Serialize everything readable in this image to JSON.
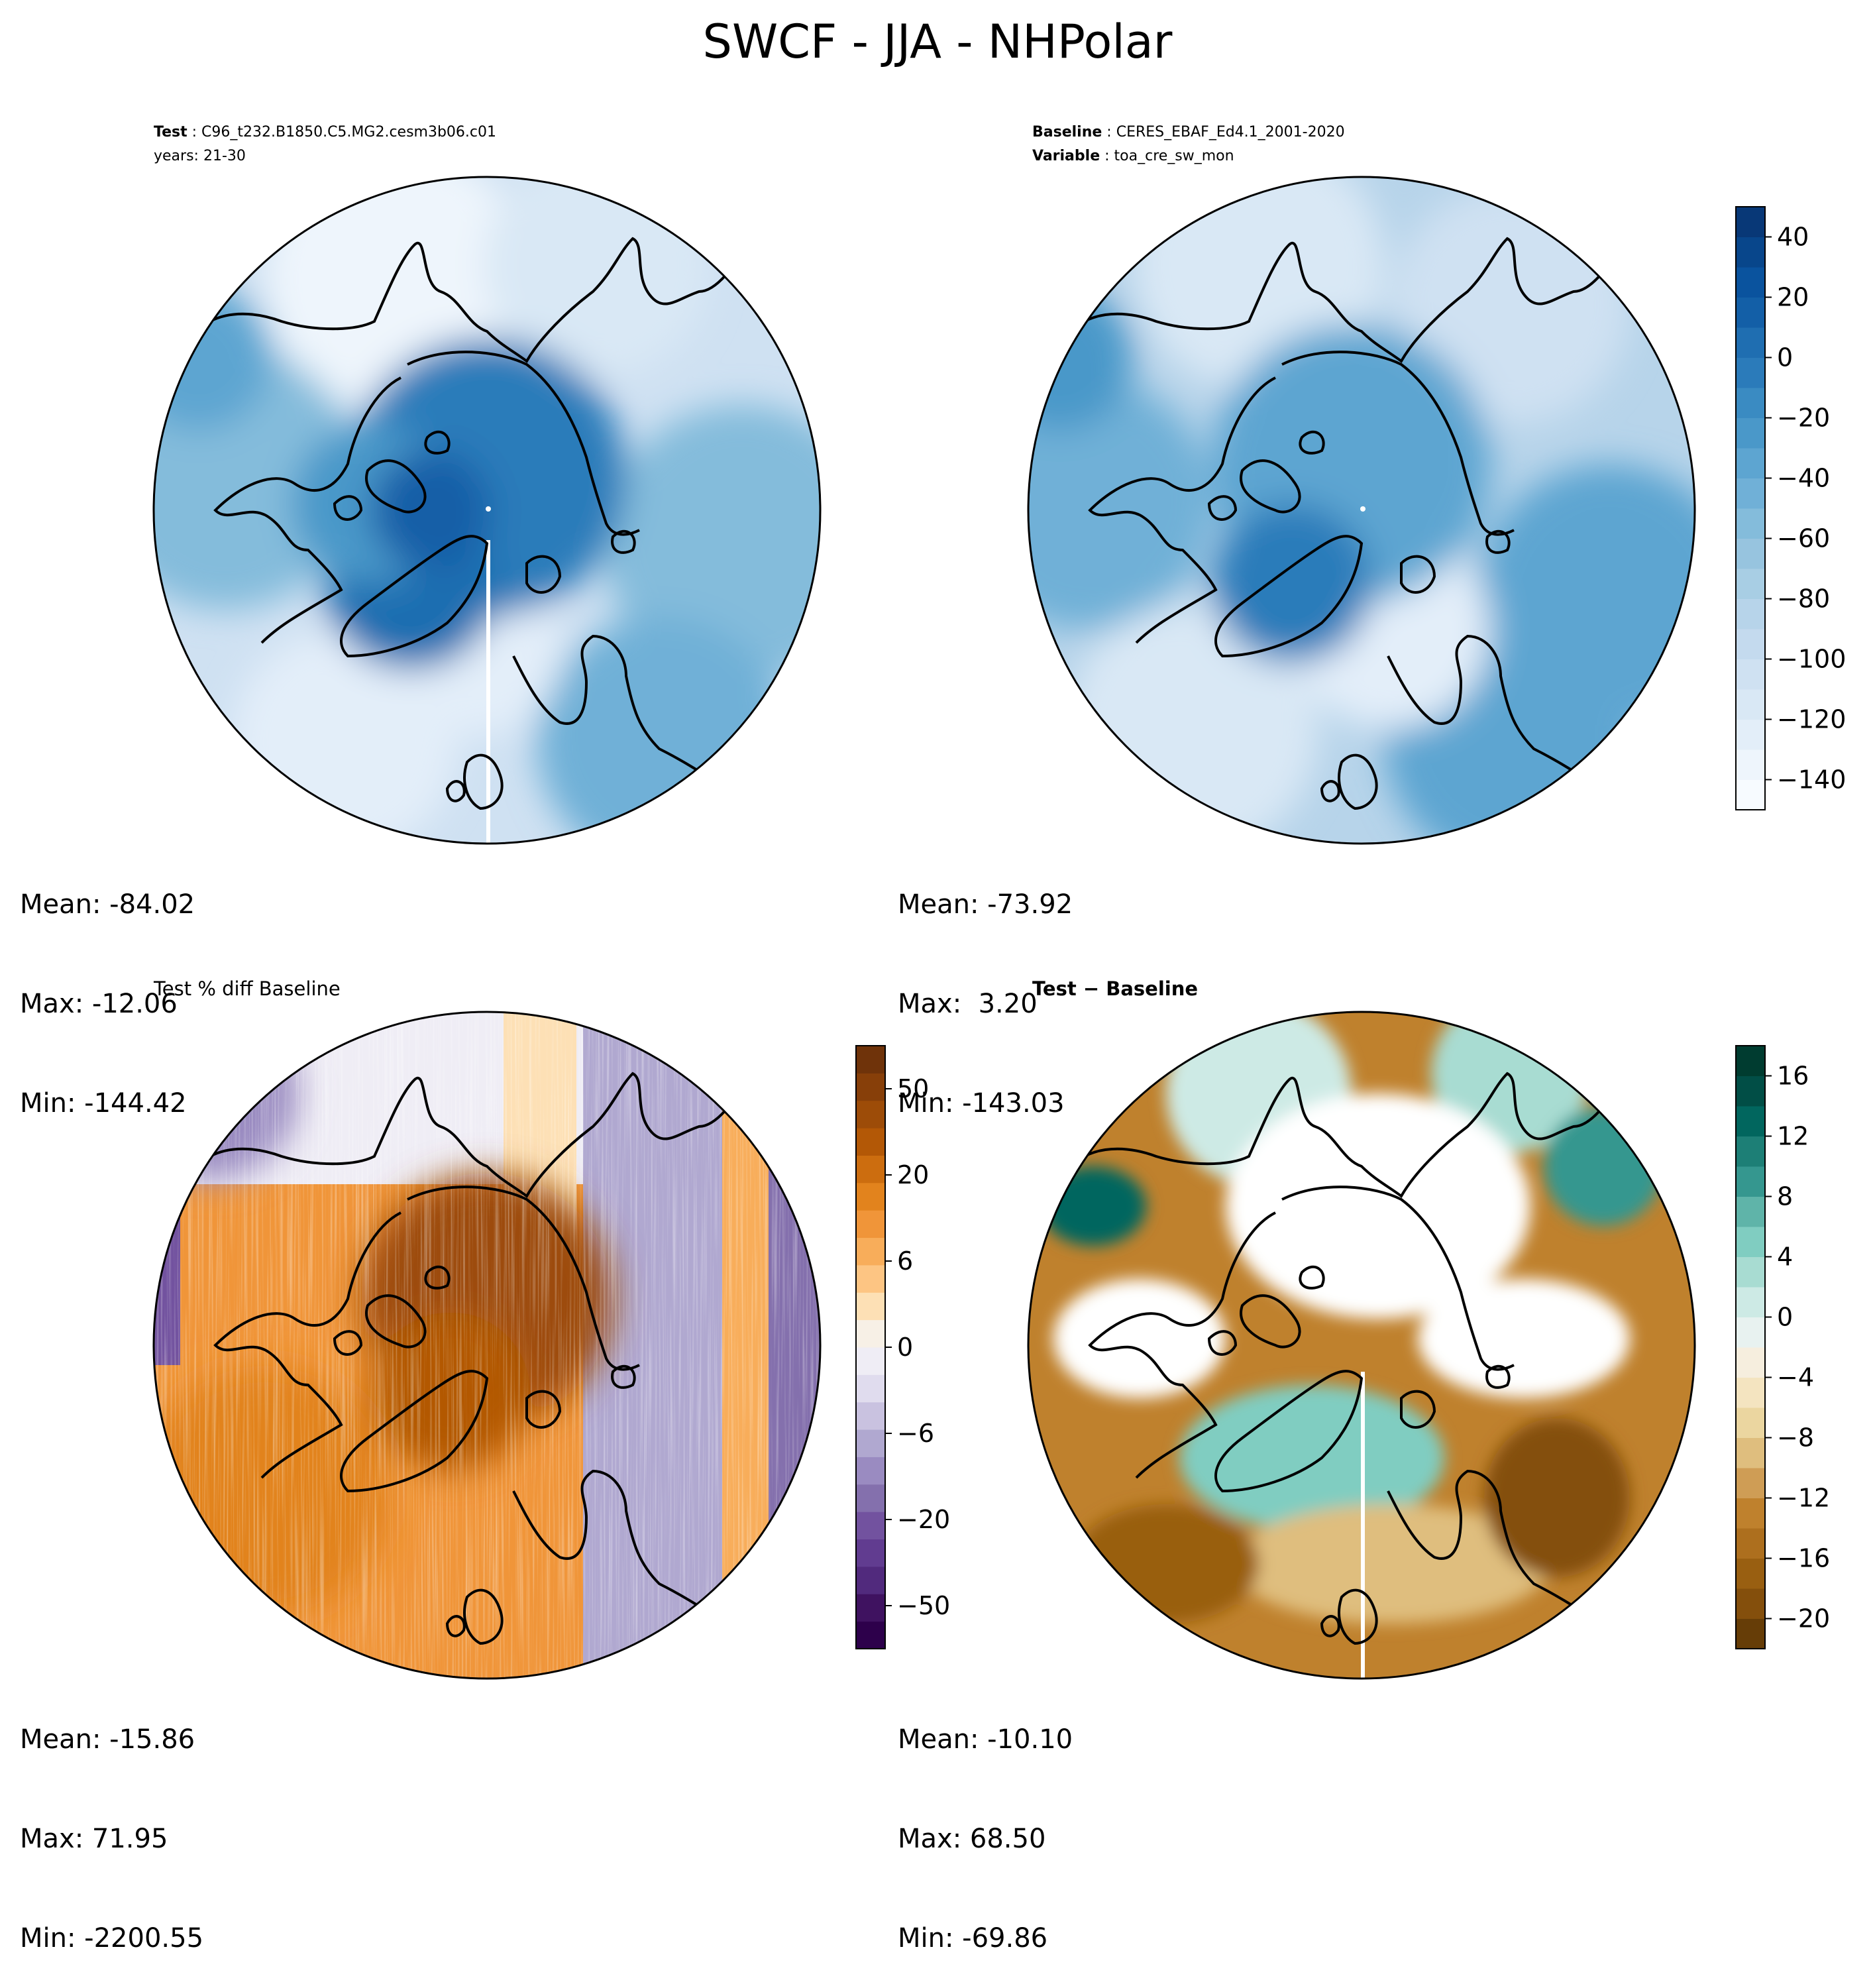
{
  "title": "SWCF - JJA - NHPolar",
  "test_header": {
    "label": "Test",
    "value": "C96_t232.B1850.C5.MG2.cesm3b06.c01",
    "years": "years: 21-30"
  },
  "baseline_header": {
    "label": "Baseline",
    "value": "CERES_EBAF_Ed4.1_2001-2020",
    "var_label": "Variable",
    "var_value": "toa_cre_sw_mon"
  },
  "pctdiff_title": "Test % diff Baseline",
  "diff_title": "Test − Baseline",
  "stats": {
    "test": {
      "mean": "Mean: -84.02",
      "max": "Max: -12.06",
      "min": "Min: -144.42"
    },
    "baseline": {
      "mean": "Mean: -73.92",
      "max": "Max:  3.20",
      "min": "Min: -143.03"
    },
    "pctdiff": {
      "mean": "Mean: -15.86",
      "max": "Max: 71.95",
      "min": "Min: -2200.55"
    },
    "diff": {
      "mean": "Mean: -10.10",
      "max": "Max: 68.50",
      "min": "Min: -69.86"
    }
  },
  "chart_data": [
    {
      "type": "heatmap",
      "projection": "north-polar-stereographic",
      "panel": "test",
      "colormap": "Blues",
      "levels": [
        -150,
        40
      ],
      "summary": {
        "mean": -84.02,
        "max": -12.06,
        "min": -144.42
      }
    },
    {
      "type": "heatmap",
      "projection": "north-polar-stereographic",
      "panel": "baseline",
      "colormap": "Blues",
      "levels": [
        -150,
        40
      ],
      "summary": {
        "mean": -73.92,
        "max": 3.2,
        "min": -143.03
      },
      "colorbar": {
        "ticks": [
          "40",
          "20",
          "0",
          "−20",
          "−40",
          "−60",
          "−80",
          "−100",
          "−120",
          "−140"
        ]
      }
    },
    {
      "type": "heatmap",
      "projection": "north-polar-stereographic",
      "panel": "pct-diff",
      "colormap": "PuOr",
      "levels": [
        -80,
        80
      ],
      "summary": {
        "mean": -15.86,
        "max": 71.95,
        "min": -2200.55
      },
      "colorbar": {
        "ticks": [
          "50",
          "20",
          "6",
          "0",
          "−6",
          "−20",
          "−50"
        ]
      }
    },
    {
      "type": "heatmap",
      "projection": "north-polar-stereographic",
      "panel": "diff",
      "colormap": "BrBG",
      "levels": [
        -20,
        18
      ],
      "summary": {
        "mean": -10.1,
        "max": 68.5,
        "min": -69.86
      },
      "colorbar": {
        "ticks": [
          "16",
          "12",
          "8",
          "4",
          "0",
          "−4",
          "−8",
          "−12",
          "−16",
          "−20"
        ]
      }
    }
  ],
  "colors": {
    "blues": [
      "#f7fbff",
      "#eef5fc",
      "#e3eef9",
      "#d9e8f5",
      "#cfe1f2",
      "#c4daee",
      "#b7d4ea",
      "#a8cee4",
      "#97c4df",
      "#84bcdb",
      "#70b0d7",
      "#5da5d1",
      "#4a98c9",
      "#3a8bc2",
      "#2b7bba",
      "#1f6eb1",
      "#135fa7",
      "#0a539e",
      "#08468b",
      "#083877"
    ],
    "puor": [
      "#2d004b",
      "#3f1260",
      "#512a7d",
      "#613c90",
      "#72529f",
      "#8470ad",
      "#9a8bc1",
      "#b0a8d0",
      "#c9c2e0",
      "#e0dcee",
      "#efedf5",
      "#f7f0e6",
      "#fde0b5",
      "#fdc583",
      "#f8ad5a",
      "#f09539",
      "#e2831d",
      "#cc6d0f",
      "#b35806",
      "#9d4c08",
      "#873f09",
      "#6f330a"
    ],
    "brbg": [
      "#663d07",
      "#844f0c",
      "#995f11",
      "#ad6f1e",
      "#bf812d",
      "#cf9d55",
      "#dfbe7e",
      "#ebd6a0",
      "#f4e4c0",
      "#f6eede",
      "#e8f2f0",
      "#cdeae5",
      "#a8dcd2",
      "#80cdc1",
      "#5fb4a9",
      "#35978f",
      "#1d7f76",
      "#01665e",
      "#014e46",
      "#003c30"
    ],
    "coastline": "#000000"
  }
}
